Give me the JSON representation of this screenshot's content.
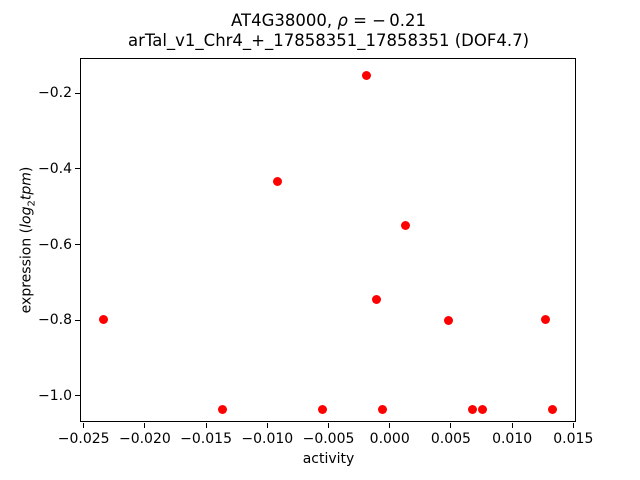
{
  "figure": {
    "title_parts": {
      "line1_prefix": "AT4G38000, ",
      "rho": "ρ",
      "line1_suffix": " = − 0.21",
      "line2": "arTal_v1_Chr4_+_17858351_17858351 (DOF4.7)"
    },
    "ylabel_parts": {
      "prefix": "expression (",
      "log": "log",
      "sub": "2",
      "tpm": "tpm",
      "suffix": ")"
    },
    "xlabel": "activity"
  },
  "chart_data": {
    "type": "scatter",
    "title": "AT4G38000, ρ = −0.21",
    "subtitle": "arTal_v1_Chr4_+_17858351_17858351 (DOF4.7)",
    "xlabel": "activity",
    "ylabel": "expression (log2 tpm)",
    "marker_color": "#ff0000",
    "axis_color": "#000000",
    "background_color": "#ffffff",
    "grid": false,
    "legend_position": "none",
    "xlim": [
      -0.0253,
      0.0153
    ],
    "ylim": [
      -1.07,
      -0.106
    ],
    "x_ticks": [
      -0.025,
      -0.02,
      -0.015,
      -0.01,
      -0.005,
      0.0,
      0.005,
      0.01,
      0.015
    ],
    "x_tick_labels": [
      "−0.025",
      "−0.020",
      "−0.015",
      "−0.010",
      "−0.005",
      "0.000",
      "0.005",
      "0.010",
      "0.015"
    ],
    "y_ticks": [
      -0.2,
      -0.4,
      -0.6,
      -0.8,
      -1.0
    ],
    "y_tick_labels": [
      "−0.2",
      "−0.4",
      "−0.6",
      "−0.8",
      "−1.0"
    ],
    "points": [
      [
        -0.0234,
        -0.799
      ],
      [
        -0.0137,
        -1.036
      ],
      [
        -0.0092,
        -0.433
      ],
      [
        -0.0055,
        -1.036
      ],
      [
        -0.0019,
        -0.153
      ],
      [
        -0.0011,
        -0.745
      ],
      [
        -0.0006,
        -1.036
      ],
      [
        0.0013,
        -0.549
      ],
      [
        0.0048,
        -0.801
      ],
      [
        0.0068,
        -1.036
      ],
      [
        0.0076,
        -1.036
      ],
      [
        0.0127,
        -0.799
      ],
      [
        0.0133,
        -1.036
      ]
    ]
  }
}
